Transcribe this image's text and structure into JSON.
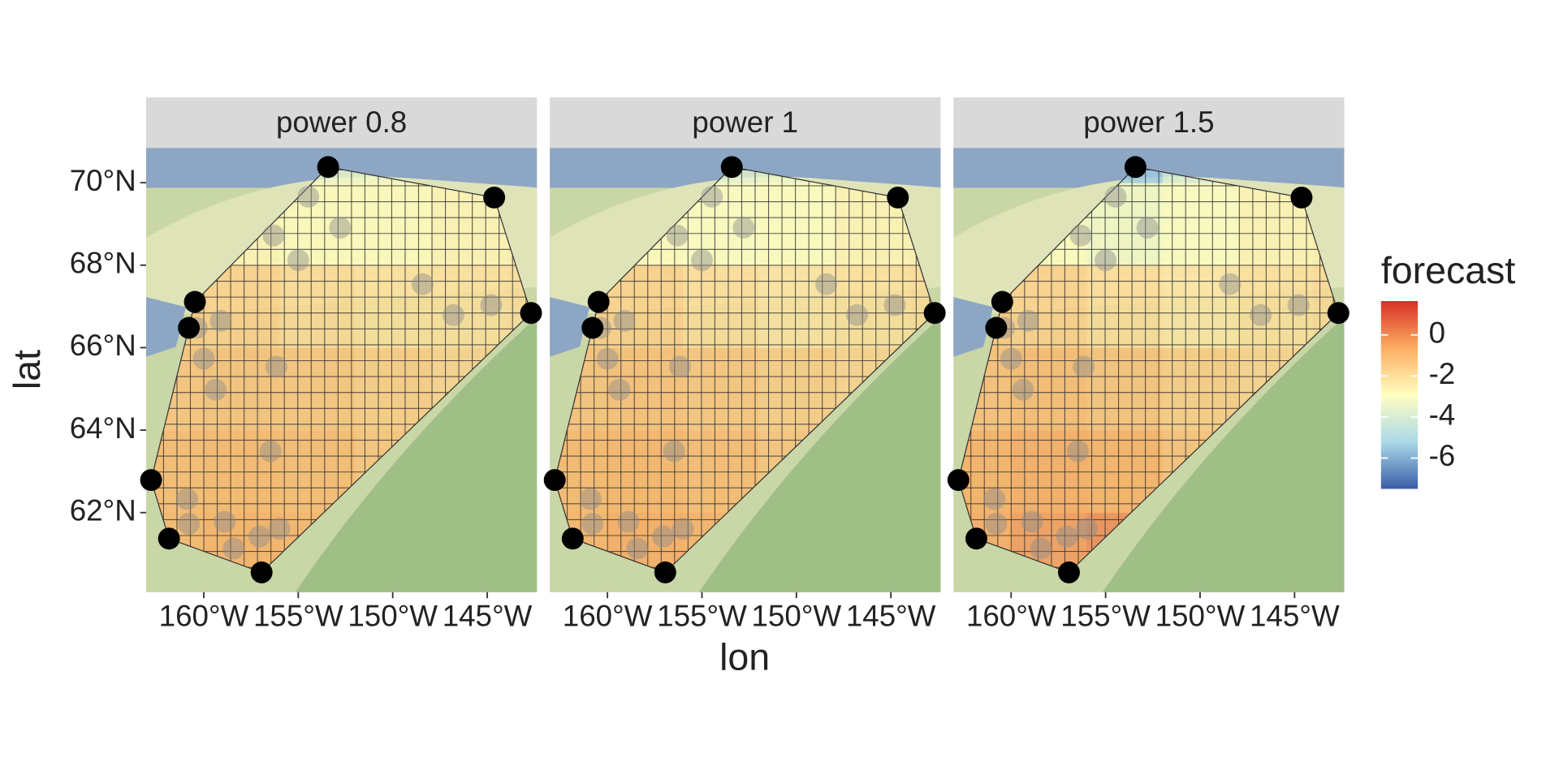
{
  "chart_data": {
    "type": "map",
    "x_label": "lon",
    "y_label": "lat",
    "xlim": [
      -163.05,
      -142.37
    ],
    "ylim": [
      60.07,
      70.84
    ],
    "xticks": [
      {
        "value": -160,
        "label": "160°W"
      },
      {
        "value": -155,
        "label": "155°W"
      },
      {
        "value": -150,
        "label": "150°W"
      },
      {
        "value": -145,
        "label": "145°W"
      }
    ],
    "yticks": [
      {
        "value": 62,
        "label": "62°N"
      },
      {
        "value": 64,
        "label": "64°N"
      },
      {
        "value": 66,
        "label": "66°N"
      },
      {
        "value": 68,
        "label": "68°N"
      },
      {
        "value": 70,
        "label": "70°N"
      }
    ],
    "hull_points": {
      "color": "#000000",
      "lon": [
        -162.79,
        -160.79,
        -160.47,
        -153.42,
        -144.63,
        -142.68,
        -156.94,
        -161.84
      ],
      "lat": [
        62.79,
        66.48,
        67.11,
        70.38,
        69.64,
        66.84,
        60.55,
        61.37
      ]
    },
    "stations": {
      "color": "#8c8c8c",
      "lon": [
        -156.31,
        -154.47,
        -152.79,
        -155.0,
        -148.42,
        -146.79,
        -144.79,
        -160.37,
        -159.1,
        -160.0,
        -156.16,
        -159.37,
        -156.47,
        -160.89,
        -160.79,
        -158.89,
        -158.42,
        -157.05,
        -156.0
      ],
      "lat": [
        68.72,
        69.66,
        68.91,
        68.12,
        67.54,
        66.79,
        67.03,
        66.48,
        66.65,
        65.73,
        65.54,
        64.98,
        63.49,
        62.33,
        61.73,
        61.78,
        61.13,
        61.42,
        61.61
      ]
    },
    "lon_edges": [
      -164,
      -160,
      -156,
      -152,
      -148,
      -144,
      -140
    ],
    "lat_edges": [
      60,
      62,
      64,
      66,
      68,
      70,
      71
    ],
    "panels": [
      {
        "title": "power 0.8",
        "values": [
          [
            -0.8,
            -0.6,
            -0.7,
            -1.2,
            -1.5,
            -1.8
          ],
          [
            -0.9,
            -0.8,
            -0.9,
            -1.2,
            -1.5,
            -1.8
          ],
          [
            -1.2,
            -1.1,
            -1.2,
            -1.4,
            -1.6,
            -1.9
          ],
          [
            -1.4,
            -1.5,
            -1.8,
            -2.0,
            -2.0,
            -1.9
          ],
          [
            -2.4,
            -2.6,
            -2.8,
            -2.8,
            -2.6,
            -2.5
          ],
          [
            -3.0,
            -3.2,
            -3.4,
            -3.3,
            -3.0,
            -2.9
          ]
        ]
      },
      {
        "title": "power 1",
        "values": [
          [
            -0.7,
            -0.5,
            -0.6,
            -1.2,
            -1.5,
            -1.8
          ],
          [
            -0.8,
            -0.7,
            -0.9,
            -1.2,
            -1.5,
            -1.8
          ],
          [
            -1.1,
            -1.0,
            -1.2,
            -1.4,
            -1.6,
            -1.9
          ],
          [
            -1.4,
            -1.5,
            -1.9,
            -2.1,
            -2.0,
            -1.9
          ],
          [
            -2.5,
            -2.8,
            -3.0,
            -2.9,
            -2.6,
            -2.5
          ],
          [
            -3.1,
            -3.4,
            -3.7,
            -3.4,
            -3.0,
            -2.9
          ]
        ]
      },
      {
        "title": "power 1.5",
        "values": [
          [
            -0.5,
            -0.2,
            0.1,
            -1.0,
            -1.5,
            -1.8
          ],
          [
            -0.6,
            -0.5,
            -0.6,
            -1.1,
            -1.5,
            -1.8
          ],
          [
            -1.0,
            -0.9,
            -1.1,
            -1.4,
            -1.6,
            -1.9
          ],
          [
            -1.3,
            -1.5,
            -1.9,
            -2.2,
            -2.0,
            -1.8
          ],
          [
            -2.5,
            -2.9,
            -3.3,
            -3.0,
            -2.6,
            -2.4
          ],
          [
            -3.0,
            -3.6,
            -5.5,
            -4.0,
            -3.2,
            -3.0
          ]
        ]
      }
    ],
    "legend_title": "forecast",
    "colorbar_lim": [
      -7.5,
      1.65
    ],
    "colorbar_ticks": [
      0,
      -2,
      -4,
      -6
    ],
    "palette": [
      "#3a5ea8",
      "#abd9e9",
      "#ffffbf",
      "#fdae61",
      "#d73027"
    ]
  }
}
